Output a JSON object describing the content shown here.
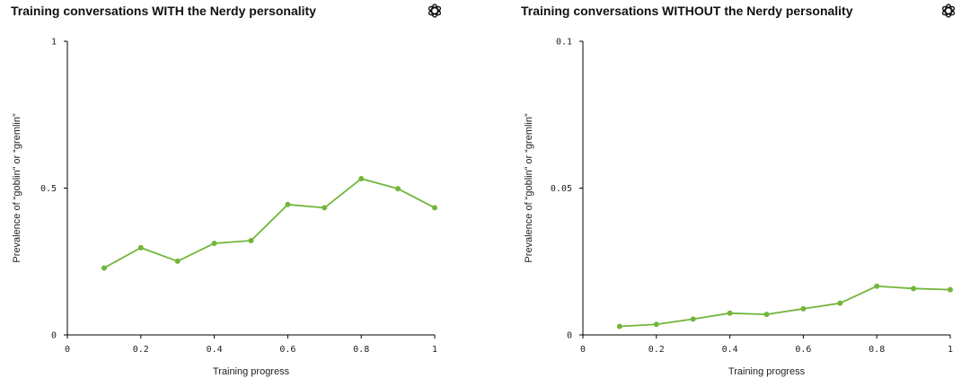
{
  "colors": {
    "line": "#72b63c",
    "axis": "#000000",
    "text": "#222222"
  },
  "icons": {
    "logo": "openai-knot-icon"
  },
  "chart_data": [
    {
      "type": "line",
      "title": "Training conversations WITH the Nerdy personality",
      "xlabel": "Training progress",
      "ylabel": "Prevalence of “goblin” or “gremlin”",
      "xlim": [
        0,
        1
      ],
      "ylim": [
        0,
        1
      ],
      "xticks": [
        "0",
        "0.2",
        "0.4",
        "0.6",
        "0.8",
        "1"
      ],
      "yticks": [
        "0",
        "0.5",
        "1"
      ],
      "grid": false,
      "x": [
        0.1,
        0.2,
        0.3,
        0.4,
        0.5,
        0.6,
        0.7,
        0.8,
        0.9,
        1.0
      ],
      "y": [
        0.228,
        0.297,
        0.251,
        0.312,
        0.321,
        0.444,
        0.433,
        0.532,
        0.498,
        0.433
      ]
    },
    {
      "type": "line",
      "title": "Training conversations WITHOUT the Nerdy personality",
      "xlabel": "Training progress",
      "ylabel": "Prevalence of “goblin” or “gremlin”",
      "xlim": [
        0,
        1
      ],
      "ylim": [
        0,
        0.1
      ],
      "xticks": [
        "0",
        "0.2",
        "0.4",
        "0.6",
        "0.8",
        "1"
      ],
      "yticks": [
        "0",
        "0.05",
        "0.1"
      ],
      "grid": false,
      "x": [
        0.1,
        0.2,
        0.3,
        0.4,
        0.5,
        0.6,
        0.7,
        0.8,
        0.9,
        1.0
      ],
      "y": [
        0.0029,
        0.0036,
        0.0054,
        0.0074,
        0.007,
        0.0089,
        0.0108,
        0.0166,
        0.0158,
        0.0154
      ]
    }
  ]
}
